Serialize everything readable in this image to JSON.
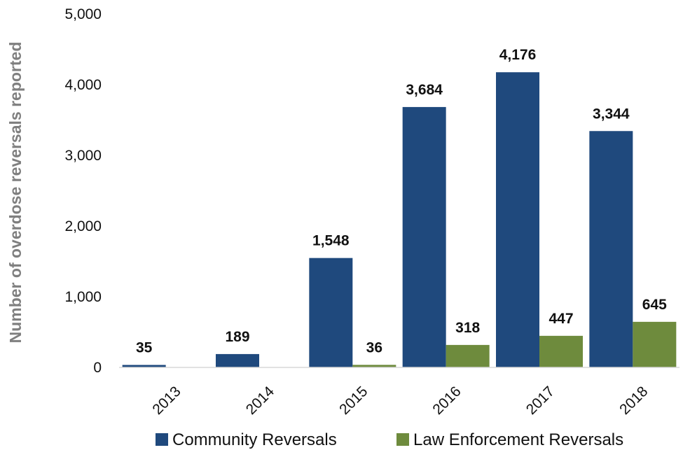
{
  "chart_data": {
    "type": "bar",
    "title": "",
    "xlabel": "",
    "ylabel": "Number of overdose reversals reported",
    "categories": [
      "2013",
      "2014",
      "2015",
      "2016",
      "2017",
      "2018"
    ],
    "series": [
      {
        "name": "Community Reversals",
        "color": "#1f497d",
        "values": [
          35,
          189,
          1548,
          3684,
          4176,
          3344
        ],
        "labels": [
          "35",
          "189",
          "1,548",
          "3,684",
          "4,176",
          "3,344"
        ]
      },
      {
        "name": "Law Enforcement Reversals",
        "color": "#6e8b3d",
        "values": [
          null,
          null,
          36,
          318,
          447,
          645
        ],
        "labels": [
          null,
          null,
          "36",
          "318",
          "447",
          "645"
        ]
      }
    ],
    "ylim": [
      0,
      5000
    ],
    "yticks": [
      0,
      1000,
      2000,
      3000,
      4000,
      5000
    ],
    "ytick_labels": [
      "0",
      "1,000",
      "2,000",
      "3,000",
      "4,000",
      "5,000"
    ],
    "grid": false,
    "legend_position": "bottom"
  }
}
